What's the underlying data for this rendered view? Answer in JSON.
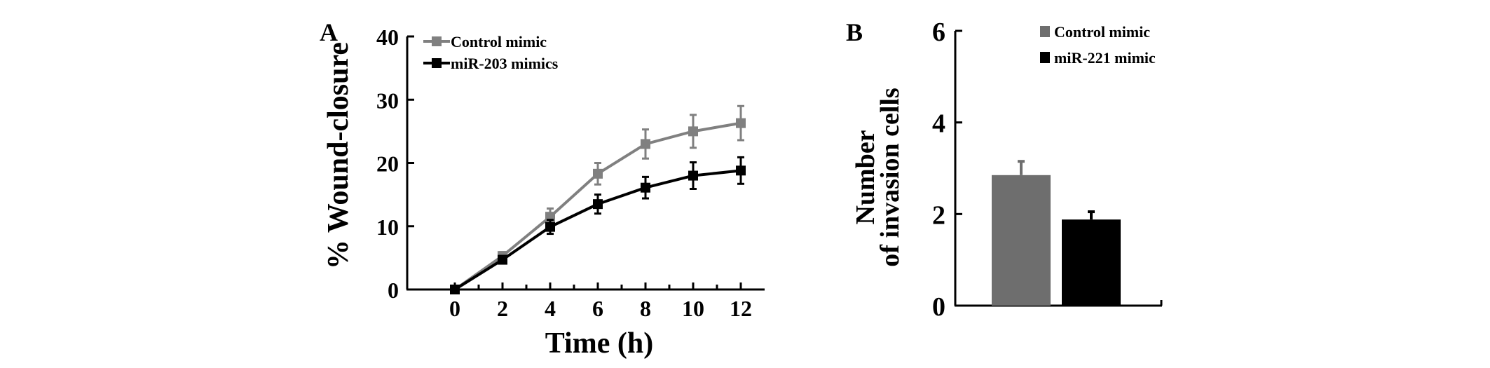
{
  "chart_data": [
    {
      "type": "line",
      "panel_label": "A",
      "title": "",
      "xlabel": "Time (h)",
      "ylabel": "% Wound-closure",
      "x": [
        0,
        2,
        4,
        6,
        8,
        10,
        12
      ],
      "xlim": [
        -2,
        13
      ],
      "ylim": [
        0,
        40
      ],
      "xticks": [
        "0",
        "2",
        "4",
        "6",
        "8",
        "10",
        "12"
      ],
      "yticks": [
        "0",
        "10",
        "20",
        "30",
        "40"
      ],
      "legend_position": "top-left",
      "grid": false,
      "series": [
        {
          "name": "Control mimic",
          "color": "#808080",
          "marker": "square",
          "values": [
            0,
            5.3,
            11.5,
            18.3,
            23,
            25,
            26.3
          ],
          "errors": [
            0,
            0.6,
            1.3,
            1.7,
            2.3,
            2.6,
            2.7
          ]
        },
        {
          "name": "miR-203 mimics",
          "color": "#000000",
          "marker": "square",
          "values": [
            0,
            4.7,
            9.9,
            13.5,
            16.1,
            18,
            18.8
          ],
          "errors": [
            0,
            0.6,
            1.1,
            1.5,
            1.7,
            2.1,
            2.1
          ]
        }
      ]
    },
    {
      "type": "bar",
      "panel_label": "B",
      "title": "",
      "xlabel": "",
      "ylabel_line1": "Number",
      "ylabel_line2": "of invasion cells",
      "categories": [
        "Control mimic",
        "miR-221 mimic"
      ],
      "values": [
        2.85,
        1.88
      ],
      "errors": [
        0.3,
        0.17
      ],
      "colors": [
        "#6e6e6e",
        "#000000"
      ],
      "ylim": [
        0,
        6
      ],
      "yticks": [
        "0",
        "2",
        "4",
        "6"
      ],
      "legend_position": "top-right",
      "grid": false,
      "series": [
        {
          "name": "Control mimic",
          "color": "#6e6e6e"
        },
        {
          "name": "miR-221 mimic",
          "color": "#000000"
        }
      ]
    }
  ]
}
